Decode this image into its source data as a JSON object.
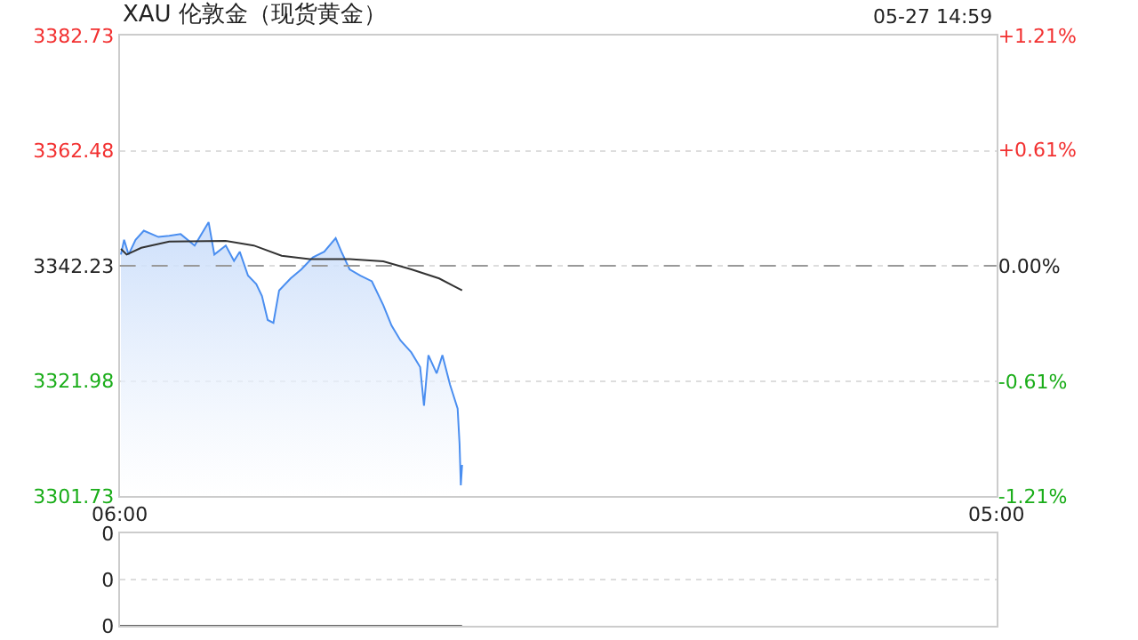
{
  "chart_data": [
    {
      "type": "line",
      "title": "XAU 伦敦金（现货黄金）",
      "annotations": [
        "05-27 14:59"
      ],
      "xlim": [
        "--05-27T06:00",
        "--05-28T05:00"
      ],
      "xticks": [
        {
          "value": "--05-27T06:00",
          "label": "06:00"
        },
        {
          "value": "--05-28T05:00",
          "label": "05:00"
        }
      ],
      "ylim": [
        3301.73,
        3382.73
      ],
      "yticks": [
        3301.73,
        3321.98,
        3342.23,
        3362.48,
        3382.73
      ],
      "y2lim": [
        -1.21,
        1.21
      ],
      "y2ticks": [
        {
          "value": -1.21,
          "label": "-1.21%"
        },
        {
          "value": -0.61,
          "label": "-0.61%"
        },
        {
          "value": 0,
          "label": "0.00%"
        },
        {
          "value": 0.61,
          "label": "+0.61%"
        },
        {
          "value": 1.21,
          "label": "+1.21%"
        }
      ],
      "ref_lines": [
        {
          "axis": "y",
          "value": 3342.23,
          "color": "#999999",
          "line_style": "dashed"
        }
      ],
      "grid": "y",
      "marker": "none",
      "line_style": "solid",
      "series": [
        {
          "type": "area",
          "color": "#4a8ef0",
          "x": [
            "--05-27T06:02",
            "--05-27T06:07",
            "--05-27T06:14",
            "--05-27T06:25",
            "--05-27T06:38",
            "--05-27T07:01",
            "--05-27T07:18",
            "--05-27T07:36",
            "--05-27T07:58",
            "--05-27T08:20",
            "--05-27T08:29",
            "--05-27T08:47",
            "--05-27T09:00",
            "--05-27T09:09",
            "--05-27T09:22",
            "--05-27T09:35",
            "--05-27T09:44",
            "--05-27T09:53",
            "--05-27T10:02",
            "--05-27T10:11",
            "--05-27T10:29",
            "--05-27T10:46",
            "--05-27T11:04",
            "--05-27T11:22",
            "--05-27T11:40",
            "--05-27T11:49",
            "--05-27T12:02",
            "--05-27T12:19",
            "--05-27T12:37",
            "--05-27T12:55",
            "--05-27T13:08",
            "--05-27T13:22",
            "--05-27T13:39",
            "--05-27T13:53",
            "--05-27T13:59",
            "--05-27T14:06",
            "--05-27T14:19",
            "--05-27T14:28",
            "--05-27T14:40",
            "--05-27T14:52",
            "--05-27T14:55",
            "--05-27T14:57",
            "--05-27T14:59"
          ],
          "values": [
            3344.2,
            3346.8,
            3344.2,
            3346.8,
            3348.4,
            3347.3,
            3347.5,
            3347.8,
            3345.8,
            3349.9,
            3344.2,
            3345.8,
            3343.1,
            3344.7,
            3340.5,
            3339.0,
            3336.9,
            3332.7,
            3332.2,
            3337.9,
            3340.0,
            3341.6,
            3343.7,
            3344.7,
            3347.1,
            3344.7,
            3341.6,
            3340.5,
            3339.5,
            3335.3,
            3331.7,
            3329.1,
            3327.0,
            3324.4,
            3317.6,
            3326.5,
            3323.3,
            3326.5,
            3321.3,
            3317.1,
            3310.9,
            3303.6,
            3307.2
          ]
        },
        {
          "type": "line",
          "color": "#333333",
          "x": [
            "--05-27T06:02",
            "--05-27T06:11",
            "--05-27T06:34",
            "--05-27T07:18",
            "--05-27T08:47",
            "--05-27T09:31",
            "--05-27T10:15",
            "--05-27T10:59",
            "--05-27T12:02",
            "--05-27T12:55",
            "--05-27T13:39",
            "--05-27T14:23",
            "--05-27T14:59"
          ],
          "values": [
            3345.2,
            3344.2,
            3345.4,
            3346.5,
            3346.6,
            3345.8,
            3344.0,
            3343.4,
            3343.4,
            3343.0,
            3341.6,
            3340.0,
            3337.9
          ]
        }
      ]
    },
    {
      "type": "line",
      "xlim": [
        "--05-27T06:00",
        "--05-28T05:00"
      ],
      "ylim": [
        0,
        0.4
      ],
      "yticks": [
        {
          "value": 0,
          "label": "0"
        },
        {
          "value": 0.2,
          "label": "0"
        },
        {
          "value": 0.4,
          "label": "0"
        }
      ],
      "tick_labels": "y",
      "grid": "y",
      "marker": "none",
      "line_style": "solid",
      "series": [
        {
          "type": "line",
          "color": "#666666",
          "x": [
            "--05-27T06:00",
            "--05-27T14:59"
          ],
          "values": [
            0,
            0
          ]
        }
      ]
    }
  ]
}
